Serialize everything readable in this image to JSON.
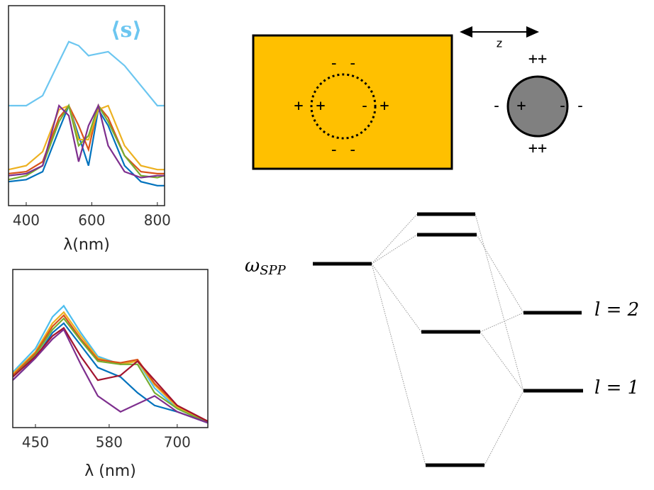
{
  "chart_data": [
    {
      "type": "line",
      "x_label": "λ(nm)",
      "annotation": "⟨s⟩",
      "x": [
        346,
        400,
        450,
        500,
        530,
        560,
        590,
        620,
        650,
        700,
        750,
        800,
        822
      ],
      "xlim": [
        346,
        822
      ],
      "xticks": [
        400,
        600,
        800
      ],
      "ylim": [
        0,
        1
      ],
      "series": [
        {
          "color": "#6cc6f0",
          "values": [
            0.5,
            0.5,
            0.55,
            0.72,
            0.82,
            0.8,
            0.75,
            0.76,
            0.77,
            0.7,
            0.6,
            0.5,
            0.5
          ]
        },
        {
          "color": "#0072bd",
          "values": [
            0.12,
            0.13,
            0.17,
            0.38,
            0.5,
            0.35,
            0.2,
            0.48,
            0.4,
            0.2,
            0.12,
            0.1,
            0.1
          ]
        },
        {
          "color": "#d95319",
          "values": [
            0.16,
            0.17,
            0.22,
            0.44,
            0.5,
            0.4,
            0.28,
            0.5,
            0.44,
            0.25,
            0.17,
            0.16,
            0.16
          ]
        },
        {
          "color": "#edb120",
          "values": [
            0.18,
            0.2,
            0.27,
            0.48,
            0.5,
            0.33,
            0.33,
            0.48,
            0.5,
            0.3,
            0.2,
            0.18,
            0.18
          ]
        },
        {
          "color": "#77ac30",
          "values": [
            0.13,
            0.15,
            0.2,
            0.42,
            0.5,
            0.3,
            0.35,
            0.5,
            0.42,
            0.25,
            0.15,
            0.14,
            0.15
          ]
        },
        {
          "color": "#7e2f8e",
          "values": [
            0.15,
            0.16,
            0.2,
            0.5,
            0.45,
            0.22,
            0.4,
            0.5,
            0.3,
            0.17,
            0.14,
            0.15,
            0.15
          ]
        }
      ]
    },
    {
      "type": "line",
      "x_label": "λ (nm)",
      "x": [
        410,
        450,
        480,
        500,
        530,
        560,
        600,
        630,
        660,
        700,
        754
      ],
      "xlim": [
        410,
        754
      ],
      "xticks": [
        450,
        580,
        700
      ],
      "ylim": [
        0,
        1
      ],
      "series": [
        {
          "color": "#4dbeee",
          "values": [
            0.35,
            0.5,
            0.7,
            0.77,
            0.6,
            0.45,
            0.4,
            0.42,
            0.25,
            0.12,
            0.03
          ]
        },
        {
          "color": "#edb120",
          "values": [
            0.34,
            0.48,
            0.66,
            0.73,
            0.58,
            0.44,
            0.4,
            0.42,
            0.27,
            0.13,
            0.04
          ]
        },
        {
          "color": "#d95319",
          "values": [
            0.33,
            0.47,
            0.64,
            0.71,
            0.56,
            0.43,
            0.41,
            0.43,
            0.28,
            0.14,
            0.04
          ]
        },
        {
          "color": "#77ac30",
          "values": [
            0.32,
            0.46,
            0.62,
            0.69,
            0.55,
            0.42,
            0.4,
            0.4,
            0.22,
            0.12,
            0.03
          ]
        },
        {
          "color": "#0072bd",
          "values": [
            0.3,
            0.44,
            0.6,
            0.66,
            0.52,
            0.38,
            0.32,
            0.22,
            0.14,
            0.1,
            0.03
          ]
        },
        {
          "color": "#a2142f",
          "values": [
            0.32,
            0.45,
            0.58,
            0.63,
            0.45,
            0.3,
            0.33,
            0.42,
            0.3,
            0.14,
            0.04
          ]
        },
        {
          "color": "#7e2f8e",
          "values": [
            0.3,
            0.44,
            0.56,
            0.62,
            0.4,
            0.2,
            0.1,
            0.15,
            0.2,
            0.1,
            0.03
          ]
        }
      ]
    }
  ],
  "diagram": {
    "slab_charges": [
      "- -",
      "+",
      "+",
      "-",
      "+",
      "- -"
    ],
    "sphere_charges": [
      "++",
      "-",
      "+",
      "-",
      "-",
      "++"
    ],
    "distance_label": "z",
    "omega": "ω",
    "omega_sub": "SPP",
    "level_l2": "l = 2",
    "level_l1": "l = 1"
  }
}
